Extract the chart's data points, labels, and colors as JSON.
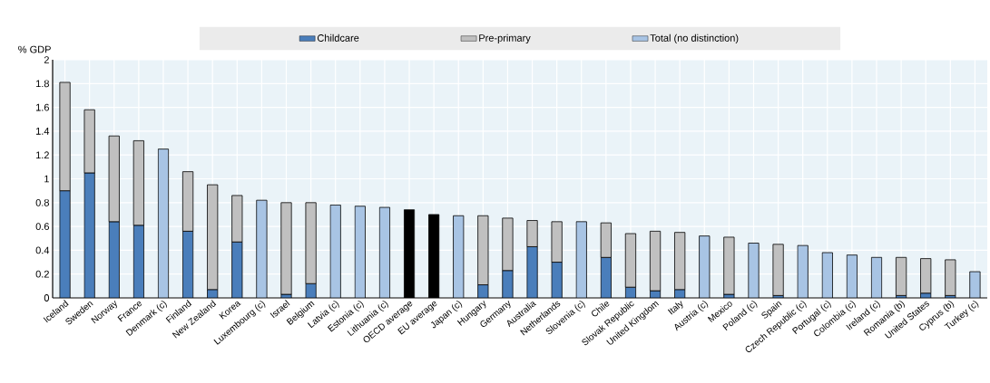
{
  "chart_data": {
    "type": "bar",
    "stacked": true,
    "ylabel": "% GDP",
    "categories": [
      "Iceland",
      "Sweden",
      "Norway",
      "France",
      "Denmark (c)",
      "Finland",
      "New Zealand",
      "Korea",
      "Luxembourg (c)",
      "Israel",
      "Belgium",
      "Latvia (c)",
      "Estonia (c)",
      "Lithuania (c)",
      "OECD average",
      "EU average",
      "Japan (c)",
      "Hungary",
      "Germany",
      "Australia",
      "Netherlands",
      "Slovenia  (c)",
      "Chile",
      "Slovak Republic",
      "United Kingdom",
      "Italy",
      "Austria (c)",
      "Mexico",
      "Poland (c)",
      "Spain",
      "Czech Republic (c)",
      "Portugal  (c)",
      "Colombia  (c)",
      "Ireland  (c)",
      "Romania  (b)",
      "United States",
      "Cyprus  (b)",
      "Turkey (c)"
    ],
    "series": [
      {
        "name": "Childcare",
        "color": "#4a7ebb",
        "values": [
          0.9,
          1.05,
          0.64,
          0.61,
          null,
          0.56,
          0.07,
          0.47,
          null,
          0.03,
          0.12,
          null,
          null,
          null,
          null,
          null,
          null,
          0.11,
          0.23,
          0.43,
          0.3,
          null,
          0.34,
          0.09,
          0.06,
          0.07,
          null,
          0.03,
          null,
          0.02,
          null,
          null,
          null,
          null,
          0.02,
          0.04,
          0.02,
          null
        ]
      },
      {
        "name": "Pre-primary",
        "color": "#c0c0c0",
        "values": [
          0.91,
          0.53,
          0.72,
          0.71,
          null,
          0.5,
          0.88,
          0.39,
          null,
          0.77,
          0.68,
          null,
          null,
          null,
          null,
          null,
          null,
          0.58,
          0.44,
          0.22,
          0.34,
          null,
          0.29,
          0.45,
          0.5,
          0.48,
          null,
          0.48,
          null,
          0.43,
          null,
          null,
          null,
          null,
          0.32,
          0.29,
          0.3,
          null
        ]
      },
      {
        "name": "Total (no distinction)",
        "color": "#a8c4e4",
        "values": [
          null,
          null,
          null,
          null,
          1.25,
          null,
          null,
          null,
          0.82,
          null,
          null,
          0.78,
          0.77,
          0.76,
          null,
          null,
          0.69,
          null,
          null,
          null,
          null,
          0.64,
          null,
          null,
          null,
          null,
          0.52,
          null,
          0.46,
          null,
          0.44,
          0.38,
          0.36,
          0.34,
          null,
          null,
          null,
          0.22
        ]
      },
      {
        "color": "#000000",
        "values": [
          null,
          null,
          null,
          null,
          null,
          null,
          null,
          null,
          null,
          null,
          null,
          null,
          null,
          null,
          0.74,
          0.7,
          null,
          null,
          null,
          null,
          null,
          null,
          null,
          null,
          null,
          null,
          null,
          null,
          null,
          null,
          null,
          null,
          null,
          null,
          null,
          null,
          null,
          null
        ]
      }
    ],
    "ylim": [
      0,
      2
    ],
    "yticks": [
      0,
      0.2,
      0.4,
      0.6,
      0.8,
      1,
      1.2,
      1.4,
      1.6,
      1.8,
      2
    ],
    "grid": true,
    "legend": "top"
  }
}
